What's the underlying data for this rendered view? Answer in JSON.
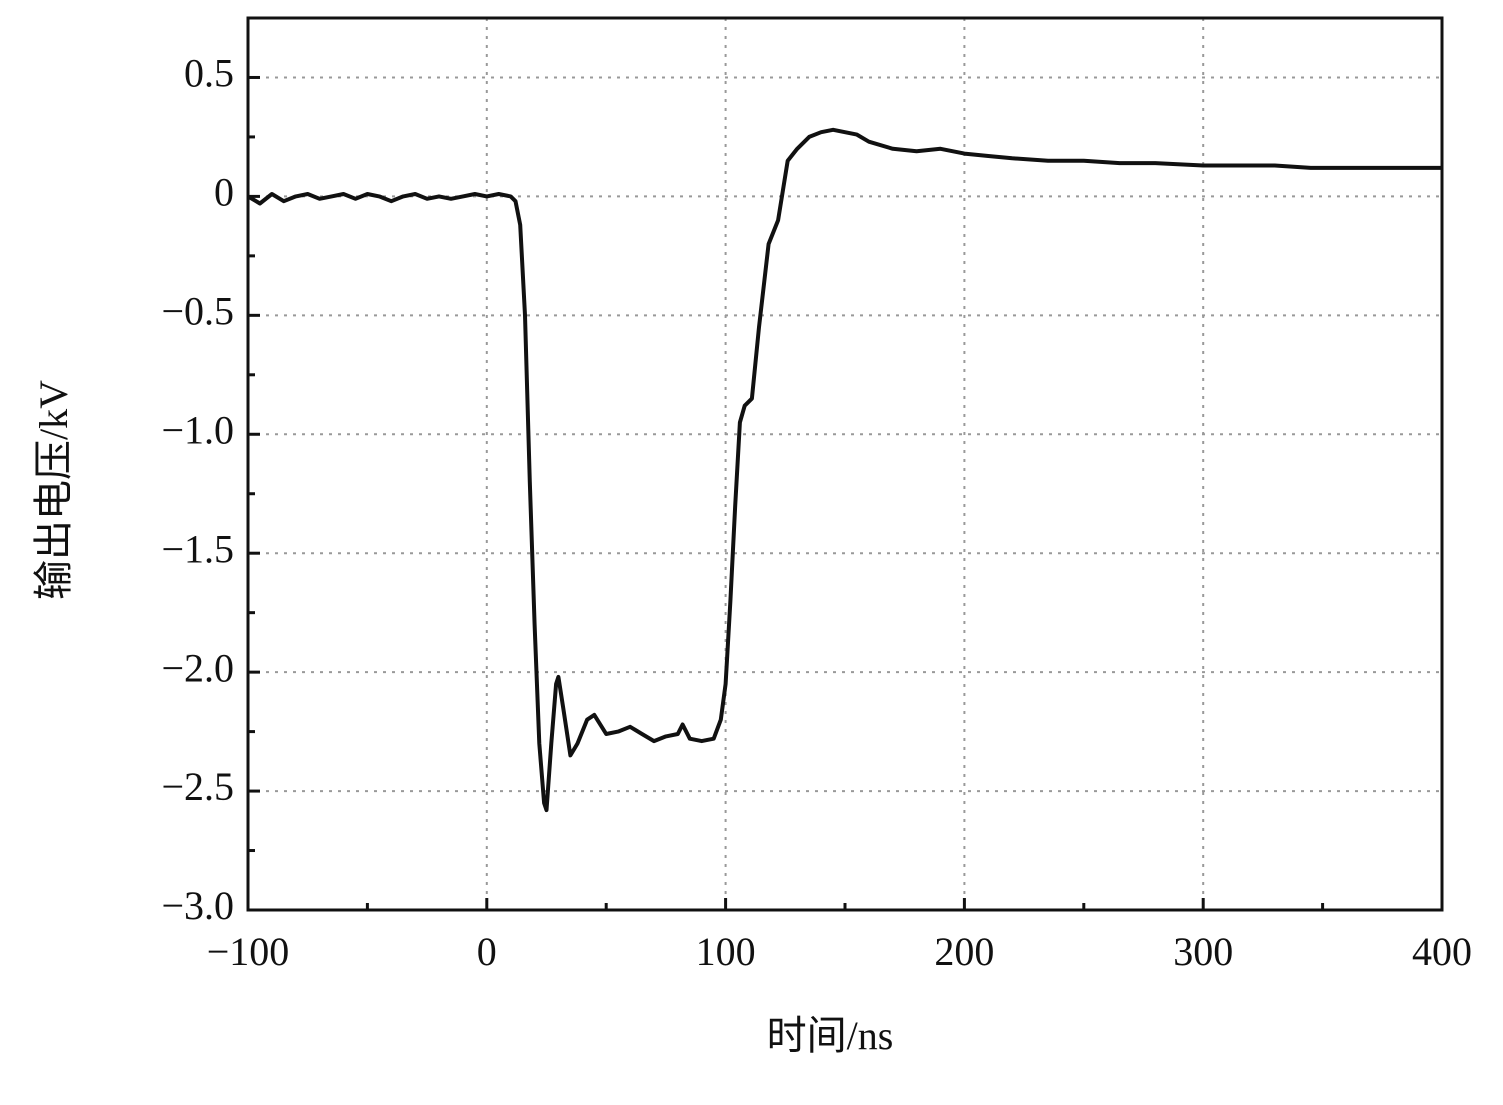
{
  "chart_data": {
    "type": "line",
    "x_label": "时间/ns",
    "y_label": "输出电压/kV",
    "xlim": [
      -100,
      400
    ],
    "xticks": [
      {
        "value": -100,
        "label": "−100"
      },
      0,
      100,
      200,
      300,
      400
    ],
    "ylim": [
      -3.0,
      0.75
    ],
    "yticks": [
      {
        "value": -3.0,
        "label": "−3.0"
      },
      {
        "value": -2.5,
        "label": "−2.5"
      },
      {
        "value": -2.0,
        "label": "−2.0"
      },
      {
        "value": -1.5,
        "label": "−1.5"
      },
      {
        "value": -1.0,
        "label": "−1.0"
      },
      {
        "value": -0.5,
        "label": "−0.5"
      },
      0,
      0.5
    ],
    "grid": true,
    "series": [
      {
        "color": "#111111",
        "x": [
          -100,
          -95,
          -90,
          -85,
          -80,
          -75,
          -70,
          -65,
          -60,
          -55,
          -50,
          -45,
          -40,
          -35,
          -30,
          -25,
          -20,
          -15,
          -10,
          -5,
          0,
          5,
          10,
          12,
          14,
          16,
          18,
          20,
          22,
          24,
          25,
          27,
          29,
          30,
          32,
          35,
          38,
          42,
          45,
          50,
          55,
          60,
          65,
          70,
          75,
          80,
          82,
          85,
          90,
          95,
          98,
          100,
          102,
          104,
          106,
          108,
          111,
          114,
          118,
          122,
          126,
          130,
          135,
          140,
          145,
          150,
          155,
          160,
          170,
          180,
          190,
          200,
          210,
          220,
          235,
          250,
          265,
          280,
          300,
          315,
          330,
          345,
          360,
          380,
          400
        ],
        "values": [
          0.0,
          -0.03,
          0.01,
          -0.02,
          0.0,
          0.01,
          -0.01,
          0.0,
          0.01,
          -0.01,
          0.01,
          0.0,
          -0.02,
          0.0,
          0.01,
          -0.01,
          0.0,
          -0.01,
          0.0,
          0.01,
          0.0,
          0.01,
          0.0,
          -0.02,
          -0.12,
          -0.5,
          -1.2,
          -1.8,
          -2.3,
          -2.55,
          -2.58,
          -2.3,
          -2.05,
          -2.02,
          -2.15,
          -2.35,
          -2.3,
          -2.2,
          -2.18,
          -2.26,
          -2.25,
          -2.23,
          -2.26,
          -2.29,
          -2.27,
          -2.26,
          -2.22,
          -2.28,
          -2.29,
          -2.28,
          -2.2,
          -2.05,
          -1.7,
          -1.3,
          -0.95,
          -0.88,
          -0.85,
          -0.55,
          -0.2,
          -0.1,
          0.15,
          0.2,
          0.25,
          0.27,
          0.28,
          0.27,
          0.26,
          0.23,
          0.2,
          0.19,
          0.2,
          0.18,
          0.17,
          0.16,
          0.15,
          0.15,
          0.14,
          0.14,
          0.13,
          0.13,
          0.13,
          0.12,
          0.12,
          0.12,
          0.12
        ]
      }
    ]
  }
}
